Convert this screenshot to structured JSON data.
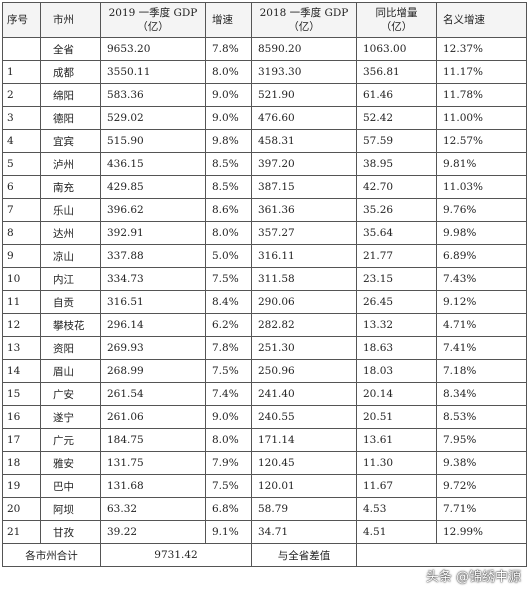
{
  "headers": {
    "seq": "序号",
    "city": "市州",
    "gdp2019_line1": "2019 一季度 GDP",
    "gdp2019_line2": "（亿）",
    "growth": "增速",
    "gdp2018_line1": "2018 一季度 GDP",
    "gdp2018_line2": "（亿）",
    "increase_line1": "同比增量",
    "increase_line2": "（亿）",
    "nominal": "名义增速"
  },
  "total_row": {
    "seq": "",
    "city": "全省",
    "gdp2019": "9653.20",
    "growth": "7.8%",
    "gdp2018": "8590.20",
    "increase": "1063.00",
    "nominal": "12.37%"
  },
  "rows": [
    {
      "seq": "1",
      "city": "成都",
      "gdp2019": "3550.11",
      "growth": "8.0%",
      "gdp2018": "3193.30",
      "increase": "356.81",
      "nominal": "11.17%"
    },
    {
      "seq": "2",
      "city": "绵阳",
      "gdp2019": "583.36",
      "growth": "9.0%",
      "gdp2018": "521.90",
      "increase": "61.46",
      "nominal": "11.78%"
    },
    {
      "seq": "3",
      "city": "德阳",
      "gdp2019": "529.02",
      "growth": "9.0%",
      "gdp2018": "476.60",
      "increase": "52.42",
      "nominal": "11.00%"
    },
    {
      "seq": "4",
      "city": "宜宾",
      "gdp2019": "515.90",
      "growth": "9.8%",
      "gdp2018": "458.31",
      "increase": "57.59",
      "nominal": "12.57%"
    },
    {
      "seq": "5",
      "city": "泸州",
      "gdp2019": "436.15",
      "growth": "8.5%",
      "gdp2018": "397.20",
      "increase": "38.95",
      "nominal": "9.81%"
    },
    {
      "seq": "6",
      "city": "南充",
      "gdp2019": "429.85",
      "growth": "8.5%",
      "gdp2018": "387.15",
      "increase": "42.70",
      "nominal": "11.03%"
    },
    {
      "seq": "7",
      "city": "乐山",
      "gdp2019": "396.62",
      "growth": "8.6%",
      "gdp2018": "361.36",
      "increase": "35.26",
      "nominal": "9.76%"
    },
    {
      "seq": "8",
      "city": "达州",
      "gdp2019": "392.91",
      "growth": "8.0%",
      "gdp2018": "357.27",
      "increase": "35.64",
      "nominal": "9.98%"
    },
    {
      "seq": "9",
      "city": "凉山",
      "gdp2019": "337.88",
      "growth": "5.0%",
      "gdp2018": "316.11",
      "increase": "21.77",
      "nominal": "6.89%"
    },
    {
      "seq": "10",
      "city": "内江",
      "gdp2019": "334.73",
      "growth": "7.5%",
      "gdp2018": "311.58",
      "increase": "23.15",
      "nominal": "7.43%"
    },
    {
      "seq": "11",
      "city": "自贡",
      "gdp2019": "316.51",
      "growth": "8.4%",
      "gdp2018": "290.06",
      "increase": "26.45",
      "nominal": "9.12%"
    },
    {
      "seq": "12",
      "city": "攀枝花",
      "gdp2019": "296.14",
      "growth": "6.2%",
      "gdp2018": "282.82",
      "increase": "13.32",
      "nominal": "4.71%"
    },
    {
      "seq": "13",
      "city": "资阳",
      "gdp2019": "269.93",
      "growth": "7.8%",
      "gdp2018": "251.30",
      "increase": "18.63",
      "nominal": "7.41%"
    },
    {
      "seq": "14",
      "city": "眉山",
      "gdp2019": "268.99",
      "growth": "7.5%",
      "gdp2018": "250.96",
      "increase": "18.03",
      "nominal": "7.18%"
    },
    {
      "seq": "15",
      "city": "广安",
      "gdp2019": "261.54",
      "growth": "7.4%",
      "gdp2018": "241.40",
      "increase": "20.14",
      "nominal": "8.34%"
    },
    {
      "seq": "16",
      "city": "遂宁",
      "gdp2019": "261.06",
      "growth": "9.0%",
      "gdp2018": "240.55",
      "increase": "20.51",
      "nominal": "8.53%"
    },
    {
      "seq": "17",
      "city": "广元",
      "gdp2019": "184.75",
      "growth": "8.0%",
      "gdp2018": "171.14",
      "increase": "13.61",
      "nominal": "7.95%"
    },
    {
      "seq": "18",
      "city": "雅安",
      "gdp2019": "131.75",
      "growth": "7.9%",
      "gdp2018": "120.45",
      "increase": "11.30",
      "nominal": "9.38%"
    },
    {
      "seq": "19",
      "city": "巴中",
      "gdp2019": "131.68",
      "growth": "7.5%",
      "gdp2018": "120.01",
      "increase": "11.67",
      "nominal": "9.72%"
    },
    {
      "seq": "20",
      "city": "阿坝",
      "gdp2019": "63.32",
      "growth": "6.8%",
      "gdp2018": "58.79",
      "increase": "4.53",
      "nominal": "7.71%"
    },
    {
      "seq": "21",
      "city": "甘孜",
      "gdp2019": "39.22",
      "growth": "9.1%",
      "gdp2018": "34.71",
      "increase": "4.51",
      "nominal": "12.99%"
    }
  ],
  "footer": {
    "sum_label": "各市州合计",
    "sum_value": "9731.42",
    "diff_label": "与全省差值",
    "diff_value": ""
  },
  "watermark": "头条 @锦绣中源"
}
